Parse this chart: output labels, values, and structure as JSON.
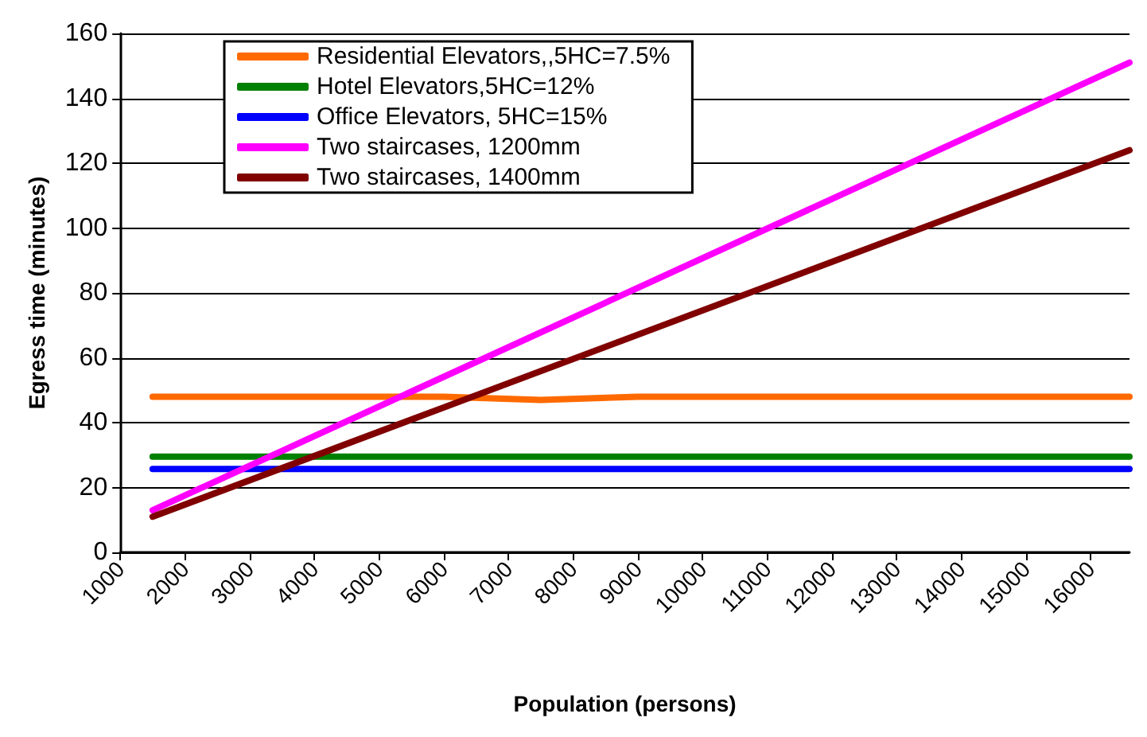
{
  "chart_data": {
    "type": "line",
    "xlabel": "Population (persons)",
    "ylabel": "Egress time (minutes)",
    "xlim": [
      1000,
      16600
    ],
    "xticks": [
      1000,
      2000,
      3000,
      4000,
      5000,
      6000,
      7000,
      8000,
      9000,
      10000,
      11000,
      12000,
      13000,
      14000,
      15000,
      16000
    ],
    "ylim": [
      0,
      160
    ],
    "yticks": [
      0,
      20,
      40,
      60,
      80,
      100,
      120,
      140,
      160
    ],
    "grid": "y",
    "legend": "top left",
    "marker": "none",
    "line_style": "solid",
    "series": [
      {
        "name": "Residential Elevators,,5HC=7.5%",
        "color": "#ff6a00",
        "x": [
          1500,
          6000,
          7500,
          9000,
          16600
        ],
        "values": [
          48,
          48,
          47,
          48,
          48
        ]
      },
      {
        "name": "Hotel Elevators,5HC=12%",
        "color": "#008000",
        "x": [
          1500,
          16600
        ],
        "values": [
          29.5,
          29.5
        ]
      },
      {
        "name": "Office Elevators, 5HC=15%",
        "color": "#0000ff",
        "x": [
          1500,
          16600
        ],
        "values": [
          25.7,
          25.7
        ]
      },
      {
        "name": "Two staircases, 1200mm",
        "color": "#ff00ff",
        "x": [
          1500,
          16600
        ],
        "values": [
          13,
          151
        ]
      },
      {
        "name": "Two staircases, 1400mm",
        "color": "#800000",
        "x": [
          1500,
          16600
        ],
        "values": [
          11,
          124
        ]
      }
    ]
  }
}
